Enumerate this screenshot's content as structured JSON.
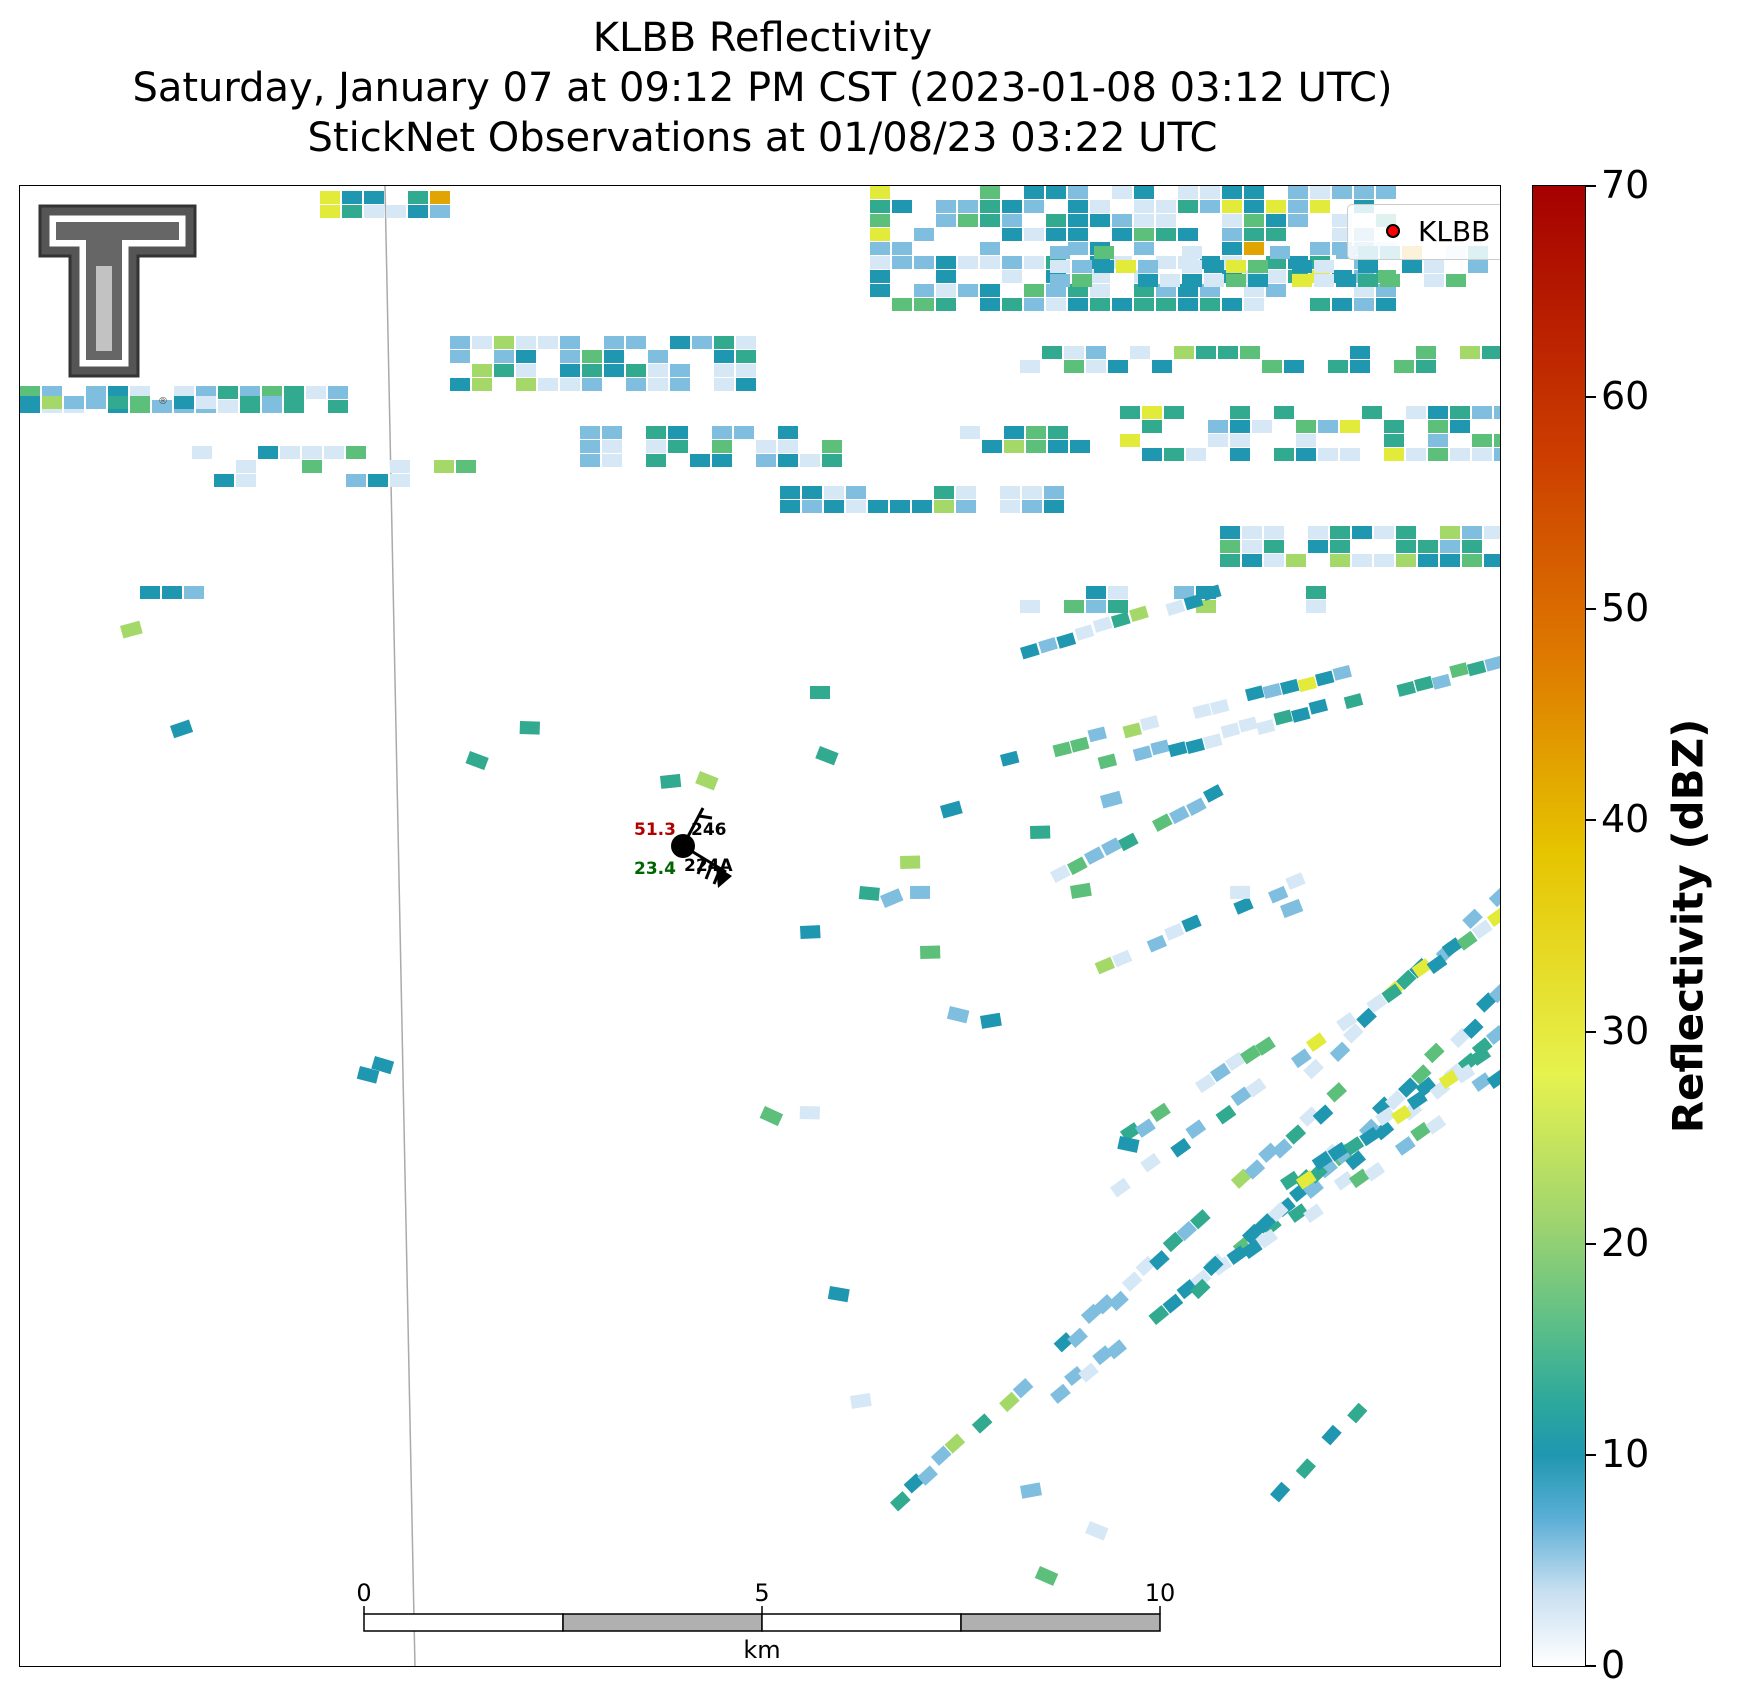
{
  "title": {
    "line1": "KLBB Reflectivity",
    "line2": "Saturday, January 07 at 09:12 PM CST (2023-01-08 03:12 UTC)",
    "line3": "StickNet Observations at 01/08/23 03:22 UTC"
  },
  "legend": {
    "label": "KLBB",
    "marker_color": "#ff0000"
  },
  "colorbar": {
    "label": "Reflectivity (dBZ)",
    "ticks": [
      "0",
      "10",
      "20",
      "30",
      "40",
      "50",
      "60",
      "70"
    ]
  },
  "station": {
    "id_top": "246",
    "id_bottom": "224A",
    "temperature": "51.3",
    "dewpoint": "23.4",
    "temperature_color": "#b00000",
    "dewpoint_color": "#006400"
  },
  "scale_bar": {
    "labels": [
      "0",
      "5",
      "10"
    ],
    "unit": "km"
  },
  "logo": {
    "name": "Texas Tech double T"
  },
  "colors": {
    "very_light": "#d6e8f5",
    "light_blue": "#7fbede",
    "teal": "#1f97b0",
    "teal_green": "#31aa8f",
    "green": "#5cbf7a",
    "light_green": "#a4d96a",
    "yellow": "#e2ea3a",
    "orange": "#e0a500"
  }
}
